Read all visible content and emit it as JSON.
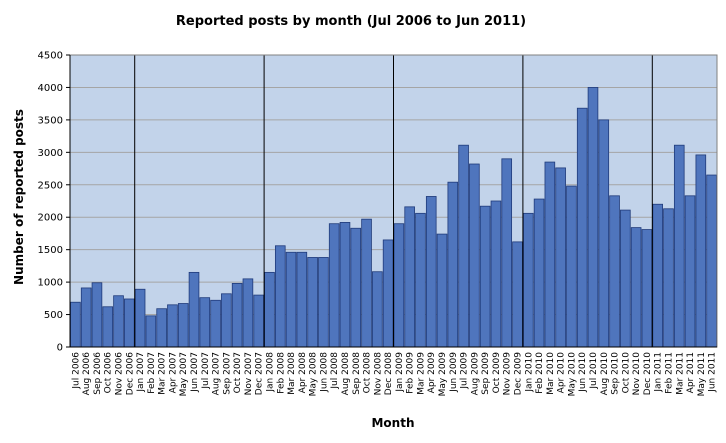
{
  "chart_data": {
    "type": "bar",
    "title": "Reported posts by month (Jul 2006 to Jun 2011)",
    "xlabel": "Month",
    "ylabel": "Number of reported posts",
    "ylim": [
      0,
      4500
    ],
    "yticks": [
      0,
      500,
      1000,
      1500,
      2000,
      2500,
      3000,
      3500,
      4000,
      4500
    ],
    "grid": true,
    "colors": {
      "bar_fill": "#4f75bd",
      "bar_stroke": "#1f3a7a",
      "plot_bg": "#c2d3ea",
      "grid": "#a5a5a5",
      "year_divider": "#000000"
    },
    "categories": [
      "Jul 2006",
      "Aug 2006",
      "Sep 2006",
      "Oct 2006",
      "Nov 2006",
      "Dec 2006",
      "Jan 2007",
      "Feb 2007",
      "Mar 2007",
      "Apr 2007",
      "May 2007",
      "Jun 2007",
      "Jul 2007",
      "Aug 2007",
      "Sep 2007",
      "Oct 2007",
      "Nov 2007",
      "Dec 2007",
      "Jan 2008",
      "Feb 2008",
      "Mar 2008",
      "Apr 2008",
      "May 2008",
      "Jun 2008",
      "Jul 2008",
      "Aug 2008",
      "Sep 2008",
      "Oct 2008",
      "Nov 2008",
      "Dec 2008",
      "Jan 2009",
      "Feb 2009",
      "Mar 2009",
      "Apr 2009",
      "May 2009",
      "Jun 2009",
      "Jul 2009",
      "Aug 2009",
      "Sep 2009",
      "Oct 2009",
      "Nov 2009",
      "Dec 2009",
      "Jan 2010",
      "Feb 2010",
      "Mar 2010",
      "Apr 2010",
      "May 2010",
      "Jun 2010",
      "Jul 2010",
      "Aug 2010",
      "Sep 2010",
      "Oct 2010",
      "Nov 2010",
      "Dec 2010",
      "Jan 2011",
      "Feb 2011",
      "Mar 2011",
      "Apr 2011",
      "May 2011",
      "Jun 2011"
    ],
    "values": [
      690,
      910,
      990,
      620,
      790,
      740,
      890,
      480,
      590,
      650,
      670,
      1150,
      760,
      720,
      820,
      980,
      1050,
      800,
      1150,
      1560,
      1460,
      1460,
      1380,
      1380,
      1900,
      1920,
      1830,
      1970,
      1160,
      1650,
      1900,
      2160,
      2060,
      2320,
      1740,
      2540,
      3110,
      2820,
      2170,
      2250,
      2900,
      1620,
      2060,
      2280,
      2850,
      2760,
      2480,
      3680,
      4000,
      3500,
      2330,
      2110,
      1840,
      1810,
      2200,
      2130,
      3110,
      2330,
      2960,
      2650
    ]
  }
}
